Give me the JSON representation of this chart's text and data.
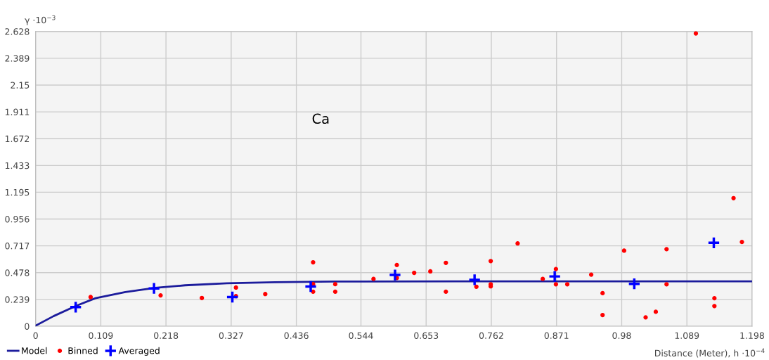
{
  "chart_data": {
    "type": "scatter",
    "ylabel": "γ ·10$^{−3}$",
    "xlabel": "Distance (Meter), h ·10$^{−4}$",
    "annotations": [
      "Ca"
    ],
    "xlim": [
      0,
      1.198
    ],
    "xticks": [
      0,
      0.109,
      0.218,
      0.327,
      0.436,
      0.544,
      0.653,
      0.762,
      0.871,
      0.98,
      1.089,
      1.198
    ],
    "ylim": [
      0,
      2.628
    ],
    "yticks": [
      0,
      0.239,
      0.478,
      0.717,
      0.956,
      1.195,
      1.433,
      1.672,
      1.911,
      2.15,
      2.389,
      2.628
    ],
    "grid": true,
    "legend": "bottom left",
    "series": [
      {
        "name": "Model",
        "type": "line",
        "color": "#1c1c9c",
        "marker": "none",
        "line_style": "solid",
        "x": [
          0,
          0.03,
          0.067,
          0.1,
          0.15,
          0.2,
          0.25,
          0.32,
          0.4,
          0.5,
          0.7,
          1.198
        ],
        "values": [
          0.005,
          0.09,
          0.18,
          0.25,
          0.305,
          0.342,
          0.365,
          0.383,
          0.393,
          0.398,
          0.4,
          0.4
        ]
      },
      {
        "name": "Binned",
        "color": "#ff0000",
        "marker": "circle",
        "x": [
          0.092,
          0.209,
          0.278,
          0.335,
          0.335,
          0.384,
          0.464,
          0.464,
          0.464,
          0.501,
          0.501,
          0.565,
          0.604,
          0.604,
          0.633,
          0.66,
          0.686,
          0.686,
          0.737,
          0.761,
          0.761,
          0.761,
          0.806,
          0.848,
          0.87,
          0.87,
          0.889,
          0.929,
          0.948,
          0.948,
          0.984,
          1.02,
          1.037,
          1.055,
          1.055,
          1.104,
          1.135,
          1.135,
          1.167,
          1.181
        ],
        "values": [
          0.26,
          0.275,
          0.252,
          0.345,
          0.268,
          0.287,
          0.57,
          0.375,
          0.308,
          0.375,
          0.308,
          0.422,
          0.546,
          0.431,
          0.476,
          0.489,
          0.565,
          0.308,
          0.352,
          0.581,
          0.374,
          0.356,
          0.738,
          0.422,
          0.51,
          0.374,
          0.374,
          0.46,
          0.295,
          0.1,
          0.674,
          0.079,
          0.129,
          0.687,
          0.374,
          2.61,
          0.25,
          0.18,
          1.142,
          0.751
        ]
      },
      {
        "name": "Averaged",
        "color": "#0000ff",
        "marker": "cross",
        "x": [
          0.067,
          0.198,
          0.329,
          0.46,
          0.601,
          0.734,
          0.868,
          1.001,
          1.134
        ],
        "values": [
          0.17,
          0.337,
          0.26,
          0.354,
          0.457,
          0.414,
          0.444,
          0.378,
          0.744
        ]
      }
    ]
  }
}
